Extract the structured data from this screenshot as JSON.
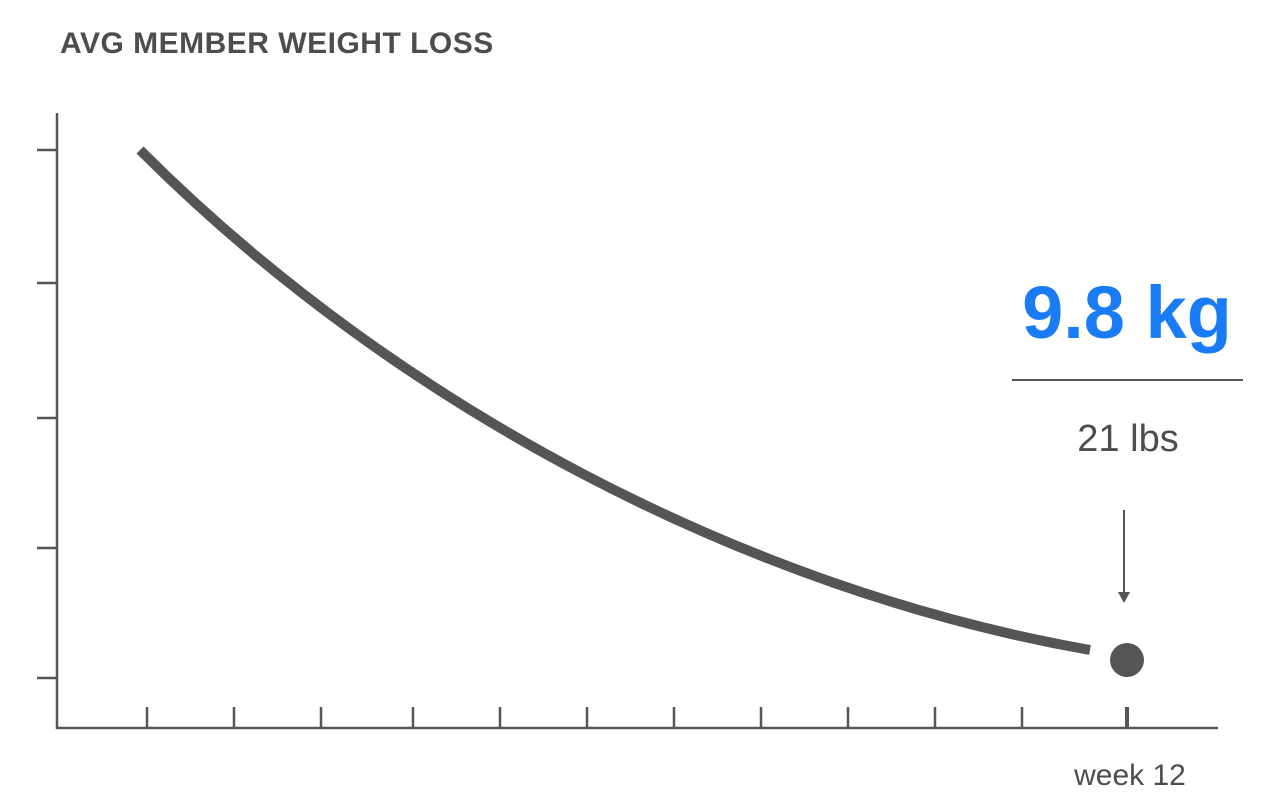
{
  "title": "AVG MEMBER WEIGHT LOSS",
  "result": {
    "headline": "9.8 kg",
    "secondary": "21 lbs"
  },
  "x_label": "week 12"
}
